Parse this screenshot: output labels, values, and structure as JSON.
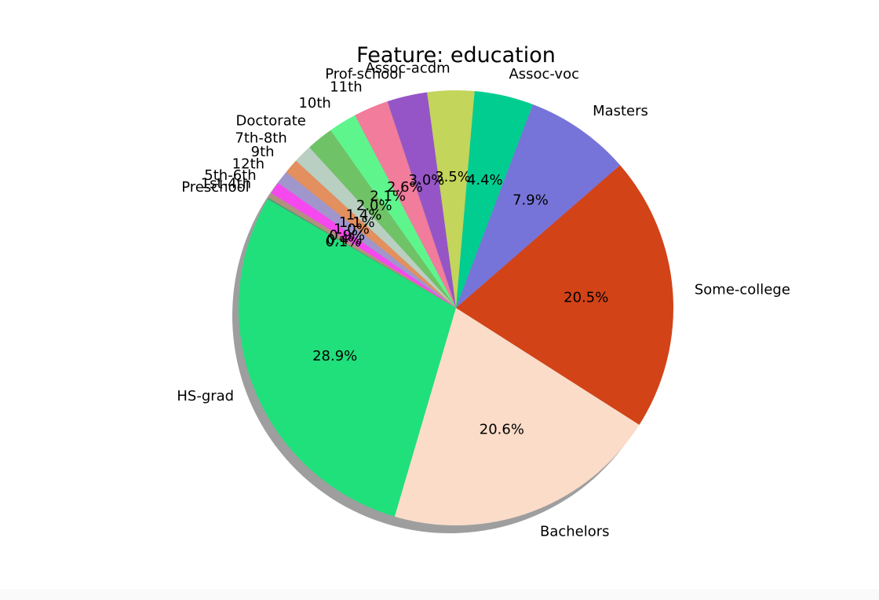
{
  "chart_data": {
    "type": "pie",
    "title": "Feature: education",
    "shadow": true,
    "start_angle_deg": 150,
    "direction": "counterclockwise",
    "slices": [
      {
        "label": "HS-grad",
        "value": 28.9,
        "pct_label": "28.9%",
        "color": "#20e07c"
      },
      {
        "label": "Bachelors",
        "value": 20.6,
        "pct_label": "20.6%",
        "color": "#fadcc8"
      },
      {
        "label": "Some-college",
        "value": 20.5,
        "pct_label": "20.5%",
        "color": "#d24318"
      },
      {
        "label": "Masters",
        "value": 7.9,
        "pct_label": "7.9%",
        "color": "#7774d9"
      },
      {
        "label": "Assoc-voc",
        "value": 4.4,
        "pct_label": "4.4%",
        "color": "#01cd90"
      },
      {
        "label": "Assoc-acdm",
        "value": 3.5,
        "pct_label": "3.5%",
        "color": "#c3d55a"
      },
      {
        "label": "Prof-school",
        "value": 3.0,
        "pct_label": "3.0%",
        "color": "#9655c6"
      },
      {
        "label": "11th",
        "value": 2.6,
        "pct_label": "2.6%",
        "color": "#f17c9b"
      },
      {
        "label": "10th",
        "value": 2.1,
        "pct_label": "2.1%",
        "color": "#5ff58d"
      },
      {
        "label": "Doctorate",
        "value": 2.0,
        "pct_label": "2.0%",
        "color": "#6fc266"
      },
      {
        "label": "7th-8th",
        "value": 1.4,
        "pct_label": "1.4%",
        "color": "#b8cfc1"
      },
      {
        "label": "9th",
        "value": 1.1,
        "pct_label": "1.1%",
        "color": "#e38f5e"
      },
      {
        "label": "12th",
        "value": 1.0,
        "pct_label": "1.0%",
        "color": "#a096cc"
      },
      {
        "label": "5th-6th",
        "value": 0.9,
        "pct_label": "0.9%",
        "color": "#f648ef"
      },
      {
        "label": "1st-4th",
        "value": 0.4,
        "pct_label": "0.4%",
        "color": "#b1917e"
      },
      {
        "label": "Preschool",
        "value": 0.1,
        "pct_label": "0.1%",
        "color": "#4f9c6f"
      }
    ]
  }
}
